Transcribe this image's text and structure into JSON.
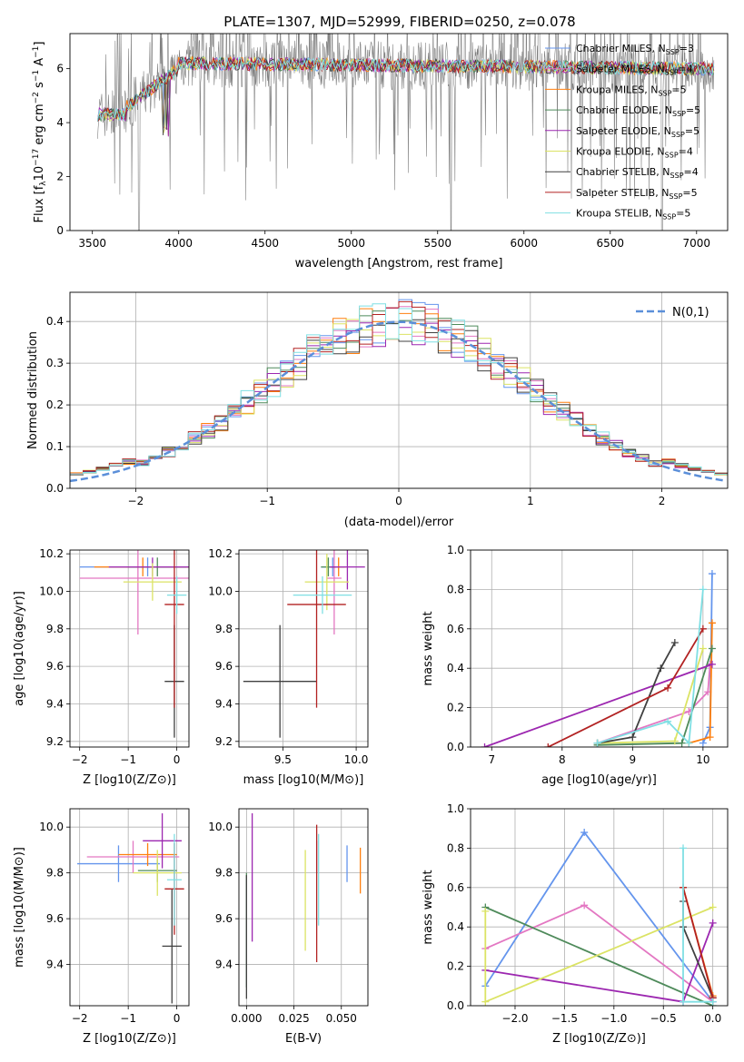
{
  "figure_title": "PLATE=1307, MJD=52999, FIBERID=0250, z=0.078",
  "chart_data": [
    {
      "id": "spectrum",
      "type": "line",
      "xlabel": "wavelength [Angstrom, rest frame]",
      "ylabel_parts": [
        "Flux [f",
        "λ",
        "10",
        "−17",
        " erg cm",
        "−2",
        " s",
        "−1",
        " A",
        "−1",
        "]"
      ],
      "xlim": [
        3370,
        7180
      ],
      "ylim": [
        0,
        7.3
      ],
      "xticks": [
        3500,
        4000,
        4500,
        5000,
        5500,
        6000,
        6500,
        7000
      ],
      "yticks": [
        0,
        2,
        4,
        6
      ],
      "legend_position": "right",
      "observed_color": "#808080",
      "series": [
        {
          "name_main": "Chabrier MILES, N",
          "name_sub": "SSP",
          "name_tail": "=3",
          "color": "#6495ed"
        },
        {
          "name_main": "Salpeter MILES, N",
          "name_sub": "SSP",
          "name_tail": "=4",
          "color": "#e377c2"
        },
        {
          "name_main": "Kroupa MILES, N",
          "name_sub": "SSP",
          "name_tail": "=5",
          "color": "#ff7f0e"
        },
        {
          "name_main": "Chabrier ELODIE, N",
          "name_sub": "SSP",
          "name_tail": "=5",
          "color": "#4e8a5a"
        },
        {
          "name_main": "Salpeter ELODIE, N",
          "name_sub": "SSP",
          "name_tail": "=5",
          "color": "#9c27b0"
        },
        {
          "name_main": "Kroupa ELODIE, N",
          "name_sub": "SSP",
          "name_tail": "=4",
          "color": "#dbe364"
        },
        {
          "name_main": "Chabrier STELIB, N",
          "name_sub": "SSP",
          "name_tail": "=4",
          "color": "#404040"
        },
        {
          "name_main": "Salpeter STELIB, N",
          "name_sub": "SSP",
          "name_tail": "=5",
          "color": "#b22222"
        },
        {
          "name_main": "Kroupa STELIB, N",
          "name_sub": "SSP",
          "name_tail": "=5",
          "color": "#7fdfe3"
        }
      ]
    },
    {
      "id": "residuals",
      "type": "histogram",
      "xlabel": "(data-model)/error",
      "ylabel": "Normed distribution",
      "xlim": [
        -2.5,
        2.5
      ],
      "ylim": [
        0,
        0.47
      ],
      "xticks": [
        -2,
        -1,
        0,
        1,
        2
      ],
      "yticks": [
        0.0,
        0.1,
        0.2,
        0.3,
        0.4
      ],
      "grid": true,
      "legend_position": "top-right",
      "reference_curve": {
        "name": "N(0,1)",
        "mean": 0,
        "sigma": 1,
        "color": "#5b8fd9"
      },
      "bin_width": 0.1
    },
    {
      "id": "age_vs_Z",
      "type": "scatter",
      "xlabel": "Z [log10(Z/Z⊙)]",
      "ylabel": "age [log10(age/yr)]",
      "xlim": [
        -2.2,
        0.25
      ],
      "ylim": [
        9.17,
        10.22
      ],
      "xticks": [
        -2,
        -1,
        0
      ],
      "yticks": [
        9.2,
        9.4,
        9.6,
        9.8,
        10.0,
        10.2
      ],
      "grid": true,
      "points": [
        {
          "series": 0,
          "x": -0.6,
          "xerr": 1.4,
          "y": 10.13,
          "yerr": 0.05
        },
        {
          "series": 1,
          "x": -0.8,
          "xerr": 1.2,
          "y": 10.07,
          "yerr": 0.3
        },
        {
          "series": 2,
          "x": -0.7,
          "xerr": 1.0,
          "y": 10.13,
          "yerr": 0.05
        },
        {
          "series": 3,
          "x": -0.4,
          "xerr": 0.6,
          "y": 10.13,
          "yerr": 0.05
        },
        {
          "series": 4,
          "x": -0.5,
          "xerr": 0.9,
          "y": 10.13,
          "yerr": 0.05
        },
        {
          "series": 5,
          "x": -0.5,
          "xerr": 0.6,
          "y": 10.05,
          "yerr": 0.1
        },
        {
          "series": 6,
          "x": -0.05,
          "xerr": 0.2,
          "y": 9.52,
          "yerr": 0.3
        },
        {
          "series": 7,
          "x": -0.05,
          "xerr": 0.2,
          "y": 9.93,
          "yerr": 0.55
        },
        {
          "series": 8,
          "x": 0.0,
          "xerr": 0.2,
          "y": 9.98,
          "yerr": 0.1
        }
      ]
    },
    {
      "id": "age_vs_mass",
      "type": "scatter",
      "xlabel": "mass [log10(M/M⊙)]",
      "xlim": [
        9.2,
        10.08
      ],
      "ylim": [
        9.17,
        10.22
      ],
      "xticks": [
        9.5,
        10.0
      ],
      "yticks": [
        9.2,
        9.4,
        9.6,
        9.8,
        10.0,
        10.2
      ],
      "grid": true,
      "points": [
        {
          "series": 0,
          "x": 9.84,
          "xerr": 0.08,
          "y": 10.13,
          "yerr": 0.05
        },
        {
          "series": 1,
          "x": 9.85,
          "xerr": 0.05,
          "y": 10.07,
          "yerr": 0.3
        },
        {
          "series": 2,
          "x": 9.88,
          "xerr": 0.05,
          "y": 10.13,
          "yerr": 0.05
        },
        {
          "series": 3,
          "x": 9.81,
          "xerr": 0.05,
          "y": 10.13,
          "yerr": 0.05
        },
        {
          "series": 4,
          "x": 9.94,
          "xerr": 0.12,
          "y": 10.13,
          "yerr": 0.12
        },
        {
          "series": 5,
          "x": 9.8,
          "xerr": 0.15,
          "y": 10.05,
          "yerr": 0.15
        },
        {
          "series": 6,
          "x": 9.48,
          "xerr": 0.25,
          "y": 9.52,
          "yerr": 0.3
        },
        {
          "series": 7,
          "x": 9.73,
          "xerr": 0.2,
          "y": 9.93,
          "yerr": 0.55
        },
        {
          "series": 8,
          "x": 9.77,
          "xerr": 0.2,
          "y": 9.98,
          "yerr": 0.1
        }
      ]
    },
    {
      "id": "weight_vs_age",
      "type": "line",
      "xlabel": "age [log10(age/yr)]",
      "ylabel": "mass weight",
      "xlim": [
        6.7,
        10.35
      ],
      "ylim": [
        0,
        1.0
      ],
      "xticks": [
        7,
        8,
        9,
        10
      ],
      "yticks": [
        0.0,
        0.2,
        0.4,
        0.6,
        0.8,
        1.0
      ],
      "grid": true,
      "lines": [
        {
          "series": 0,
          "points": [
            [
              10.0,
              0.02
            ],
            [
              10.1,
              0.1
            ],
            [
              10.13,
              0.88
            ]
          ]
        },
        {
          "series": 1,
          "points": [
            [
              8.5,
              0.02
            ],
            [
              9.8,
              0.18
            ],
            [
              10.07,
              0.28
            ],
            [
              10.1,
              0.42
            ]
          ]
        },
        {
          "series": 2,
          "points": [
            [
              9.8,
              0.02
            ],
            [
              10.1,
              0.05
            ],
            [
              10.13,
              0.63
            ]
          ]
        },
        {
          "series": 3,
          "points": [
            [
              8.5,
              0.01
            ],
            [
              9.7,
              0.02
            ],
            [
              10.13,
              0.5
            ]
          ]
        },
        {
          "series": 4,
          "points": [
            [
              6.9,
              0.0
            ],
            [
              10.13,
              0.42
            ]
          ]
        },
        {
          "series": 5,
          "points": [
            [
              8.5,
              0.02
            ],
            [
              9.6,
              0.03
            ],
            [
              10.0,
              0.5
            ]
          ]
        },
        {
          "series": 6,
          "points": [
            [
              8.5,
              0.02
            ],
            [
              9.0,
              0.05
            ],
            [
              9.4,
              0.4
            ],
            [
              9.6,
              0.53
            ]
          ]
        },
        {
          "series": 7,
          "points": [
            [
              7.8,
              0.0
            ],
            [
              9.5,
              0.3
            ],
            [
              10.0,
              0.6
            ]
          ]
        },
        {
          "series": 8,
          "points": [
            [
              8.5,
              0.02
            ],
            [
              9.5,
              0.13
            ],
            [
              9.8,
              0.02
            ],
            [
              10.0,
              0.8
            ]
          ]
        }
      ]
    },
    {
      "id": "mass_vs_Z",
      "type": "scatter",
      "xlabel": "Z [log10(Z/Z⊙)]",
      "ylabel": "mass [log10(M/M⊙)]",
      "xlim": [
        -2.2,
        0.25
      ],
      "ylim": [
        9.22,
        10.08
      ],
      "xticks": [
        -2,
        -1,
        0
      ],
      "yticks": [
        9.4,
        9.6,
        9.8,
        10.0
      ],
      "grid": true,
      "points": [
        {
          "series": 0,
          "x": -1.2,
          "xerr": 0.85,
          "y": 9.84,
          "yerr": 0.08
        },
        {
          "series": 1,
          "x": -0.9,
          "xerr": 0.95,
          "y": 9.87,
          "yerr": 0.07
        },
        {
          "series": 2,
          "x": -0.6,
          "xerr": 0.6,
          "y": 9.88,
          "yerr": 0.05
        },
        {
          "series": 3,
          "x": -0.4,
          "xerr": 0.4,
          "y": 9.81,
          "yerr": 0.05
        },
        {
          "series": 4,
          "x": -0.3,
          "xerr": 0.4,
          "y": 9.94,
          "yerr": 0.12
        },
        {
          "series": 5,
          "x": -0.4,
          "xerr": 0.5,
          "y": 9.8,
          "yerr": 0.1
        },
        {
          "series": 6,
          "x": -0.1,
          "xerr": 0.2,
          "y": 9.48,
          "yerr": 0.25
        },
        {
          "series": 7,
          "x": -0.05,
          "xerr": 0.2,
          "y": 9.73,
          "yerr": 0.2
        },
        {
          "series": 8,
          "x": -0.05,
          "xerr": 0.15,
          "y": 9.77,
          "yerr": 0.2
        }
      ]
    },
    {
      "id": "mass_vs_ebv",
      "type": "scatter",
      "xlabel": "E(B-V)",
      "xlim": [
        -0.004,
        0.064
      ],
      "ylim": [
        9.22,
        10.08
      ],
      "xticks": [
        0.0,
        0.025,
        0.05
      ],
      "yticks": [
        9.4,
        9.6,
        9.8,
        10.0
      ],
      "grid": true,
      "points": [
        {
          "series": 0,
          "x": 0.053,
          "y": 9.84,
          "yerr": 0.08
        },
        {
          "series": 1,
          "x": 0.037,
          "y": 9.87,
          "yerr": 0.07
        },
        {
          "series": 2,
          "x": 0.06,
          "y": 9.81,
          "yerr": 0.1
        },
        {
          "series": 3,
          "x": 0.0,
          "y": 9.55,
          "yerr": 0.25
        },
        {
          "series": 4,
          "x": 0.003,
          "y": 9.78,
          "yerr": 0.28
        },
        {
          "series": 5,
          "x": 0.031,
          "y": 9.68,
          "yerr": 0.22
        },
        {
          "series": 6,
          "x": 0.0,
          "y": 9.52,
          "yerr": 0.27
        },
        {
          "series": 7,
          "x": 0.037,
          "y": 9.71,
          "yerr": 0.3
        },
        {
          "series": 8,
          "x": 0.038,
          "y": 9.77,
          "yerr": 0.2
        }
      ]
    },
    {
      "id": "weight_vs_Z",
      "type": "line",
      "xlabel": "Z [log10(Z/Z⊙)]",
      "ylabel": "mass weight",
      "xlim": [
        -2.45,
        0.15
      ],
      "ylim": [
        0,
        1.0
      ],
      "xticks": [
        -2.0,
        -1.5,
        -1.0,
        -0.5,
        0.0
      ],
      "yticks": [
        0.0,
        0.2,
        0.4,
        0.6,
        0.8,
        1.0
      ],
      "grid": true,
      "lines": [
        {
          "series": 0,
          "points": [
            [
              -2.3,
              0.1
            ],
            [
              -1.3,
              0.88
            ],
            [
              0.0,
              0.02
            ]
          ]
        },
        {
          "series": 1,
          "points": [
            [
              -2.3,
              0.29
            ],
            [
              -1.3,
              0.51
            ],
            [
              0.0,
              0.02
            ]
          ]
        },
        {
          "series": 2,
          "points": [
            [
              -0.3,
              0.6
            ],
            [
              0.0,
              0.05
            ]
          ]
        },
        {
          "series": 3,
          "points": [
            [
              -2.3,
              0.5
            ],
            [
              0.0,
              0.0
            ]
          ]
        },
        {
          "series": 4,
          "points": [
            [
              -2.3,
              0.18
            ],
            [
              -0.3,
              0.02
            ],
            [
              0.0,
              0.42
            ]
          ]
        },
        {
          "series": 5,
          "points": [
            [
              -2.3,
              0.48
            ],
            [
              -2.3,
              0.02
            ],
            [
              0.0,
              0.5
            ]
          ]
        },
        {
          "series": 6,
          "points": [
            [
              -0.3,
              0.53
            ],
            [
              -0.3,
              0.4
            ],
            [
              0.0,
              0.04
            ]
          ]
        },
        {
          "series": 7,
          "points": [
            [
              -0.3,
              0.6
            ],
            [
              0.0,
              0.04
            ]
          ]
        },
        {
          "series": 8,
          "points": [
            [
              -0.3,
              0.8
            ],
            [
              -0.3,
              0.02
            ],
            [
              0.0,
              0.02
            ]
          ]
        }
      ]
    }
  ]
}
